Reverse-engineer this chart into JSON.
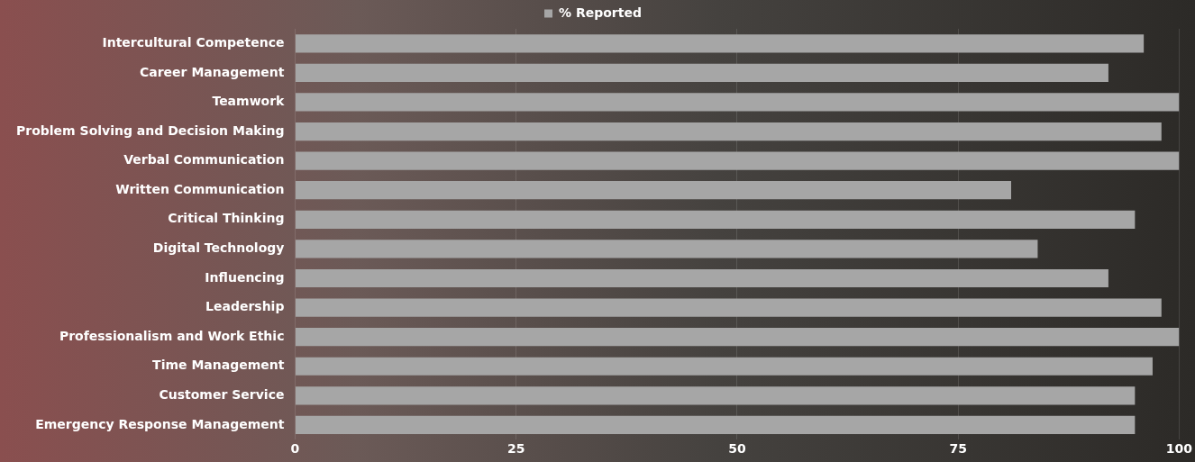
{
  "chart_data": {
    "type": "bar",
    "orientation": "horizontal",
    "categories": [
      "Intercultural Competence",
      "Career Management",
      "Teamwork",
      "Problem Solving and Decision Making",
      "Verbal Communication",
      "Written Communication",
      "Critical Thinking",
      "Digital Technology",
      "Influencing",
      "Leadership",
      "Professionalism and Work Ethic",
      "Time Management",
      "Customer Service",
      "Emergency Response Management"
    ],
    "series": [
      {
        "name": "% Reported",
        "color": "#a6a6a6",
        "values": [
          96,
          92,
          100,
          98,
          100,
          81,
          95,
          84,
          92,
          98,
          100,
          97,
          95,
          95
        ]
      }
    ],
    "xlim": [
      0,
      100
    ],
    "xticks": [
      0,
      25,
      50,
      75,
      100
    ],
    "grid": "x",
    "legend": "top"
  }
}
